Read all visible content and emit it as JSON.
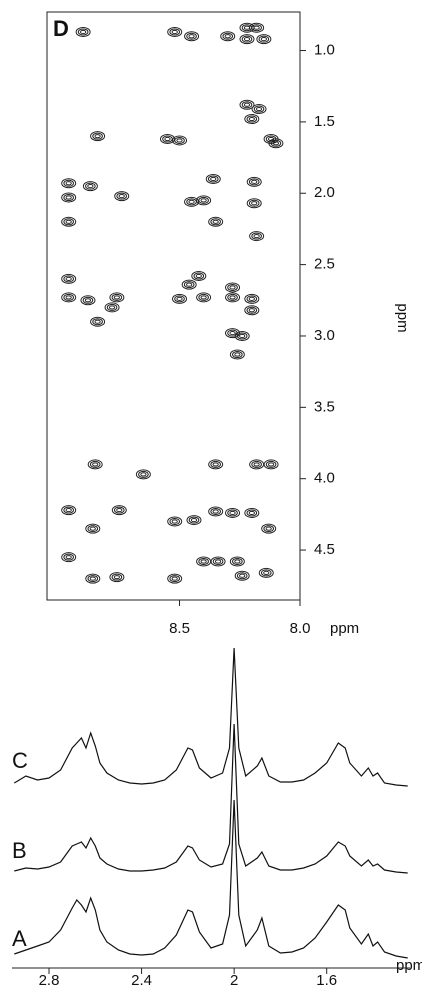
{
  "chart_data": [
    {
      "type": "contour",
      "panel_label": "D",
      "xlabel": "ppm",
      "ylabel": "ppm",
      "xlim": [
        9.05,
        8.0
      ],
      "ylim": [
        0.73,
        4.85
      ],
      "xticks": [
        8.5,
        {
          "value": 8,
          "label": "8.0"
        }
      ],
      "yticks": [
        {
          "value": 1,
          "label": "1.0"
        },
        1.5,
        {
          "value": 2,
          "label": "2.0"
        },
        2.5,
        {
          "value": 3,
          "label": "3.0"
        },
        3.5,
        {
          "value": 4,
          "label": "4.0"
        },
        4.5
      ],
      "color": "#222",
      "x": [
        8.9,
        8.52,
        8.45,
        8.3,
        8.22,
        8.18,
        8.22,
        8.15,
        8.84,
        8.55,
        8.5,
        8.22,
        8.17,
        8.2,
        8.12,
        8.1,
        8.96,
        8.96,
        8.96,
        8.87,
        8.74,
        8.36,
        8.4,
        8.45,
        8.35,
        8.19,
        8.19,
        8.18,
        8.96,
        8.96,
        8.88,
        8.76,
        8.78,
        8.84,
        8.5,
        8.42,
        8.46,
        8.4,
        8.28,
        8.28,
        8.2,
        8.2,
        8.24,
        8.28,
        8.26,
        8.85,
        8.65,
        8.35,
        8.18,
        8.12,
        8.96,
        8.86,
        8.75,
        8.52,
        8.44,
        8.35,
        8.28,
        8.2,
        8.13,
        8.96,
        8.86,
        8.76,
        8.52,
        8.4,
        8.34,
        8.26,
        8.24,
        8.14
      ],
      "values": [
        0.87,
        0.87,
        0.9,
        0.9,
        0.84,
        0.84,
        0.92,
        0.92,
        1.6,
        1.62,
        1.63,
        1.38,
        1.41,
        1.48,
        1.62,
        1.65,
        1.93,
        2.03,
        2.2,
        1.95,
        2.02,
        1.9,
        2.05,
        2.06,
        2.2,
        1.92,
        2.07,
        2.3,
        2.6,
        2.73,
        2.75,
        2.73,
        2.8,
        2.9,
        2.74,
        2.58,
        2.64,
        2.73,
        2.66,
        2.73,
        2.74,
        2.82,
        3.0,
        2.98,
        3.13,
        3.9,
        3.97,
        3.9,
        3.9,
        3.9,
        4.22,
        4.35,
        4.22,
        4.3,
        4.29,
        4.23,
        4.24,
        4.24,
        4.35,
        4.55,
        4.7,
        4.69,
        4.7,
        4.58,
        4.58,
        4.58,
        4.68,
        4.66
      ]
    },
    {
      "type": "line",
      "xlabel": "ppm",
      "xlim": [
        2.96,
        1.24
      ],
      "xticks": [
        2.8,
        2.4,
        2,
        1.6
      ],
      "x": [
        2.95,
        2.9,
        2.85,
        2.8,
        2.75,
        2.7,
        2.68,
        2.66,
        2.64,
        2.62,
        2.6,
        2.58,
        2.55,
        2.5,
        2.45,
        2.4,
        2.35,
        2.3,
        2.25,
        2.2,
        2.18,
        2.15,
        2.1,
        2.05,
        2.02,
        2.0,
        1.98,
        1.95,
        1.9,
        1.88,
        1.85,
        1.8,
        1.75,
        1.7,
        1.65,
        1.6,
        1.55,
        1.52,
        1.5,
        1.45,
        1.42,
        1.4,
        1.38,
        1.35,
        1.3,
        1.25
      ],
      "series": [
        {
          "name": "A",
          "color": "#111",
          "values": [
            6,
            10,
            14,
            18,
            30,
            52,
            60,
            55,
            48,
            62,
            50,
            30,
            18,
            10,
            6,
            5,
            6,
            12,
            25,
            50,
            48,
            28,
            12,
            16,
            45,
            160,
            45,
            14,
            30,
            42,
            14,
            7,
            8,
            12,
            22,
            38,
            55,
            50,
            32,
            16,
            26,
            14,
            18,
            8,
            4,
            2
          ]
        },
        {
          "name": "B",
          "color": "#111",
          "values": [
            3,
            6,
            5,
            7,
            12,
            28,
            30,
            32,
            26,
            36,
            28,
            16,
            10,
            5,
            3,
            3,
            4,
            6,
            12,
            28,
            26,
            14,
            7,
            10,
            30,
            150,
            30,
            8,
            16,
            22,
            8,
            4,
            4,
            6,
            10,
            18,
            32,
            28,
            18,
            8,
            14,
            8,
            10,
            4,
            2,
            1
          ]
        },
        {
          "name": "C",
          "color": "#111",
          "values": [
            5,
            12,
            8,
            10,
            18,
            40,
            45,
            50,
            40,
            55,
            42,
            25,
            15,
            8,
            5,
            4,
            5,
            8,
            18,
            40,
            38,
            20,
            10,
            15,
            40,
            140,
            40,
            12,
            22,
            30,
            12,
            6,
            6,
            8,
            15,
            25,
            45,
            40,
            25,
            12,
            20,
            12,
            15,
            5,
            3,
            2
          ]
        }
      ]
    }
  ]
}
